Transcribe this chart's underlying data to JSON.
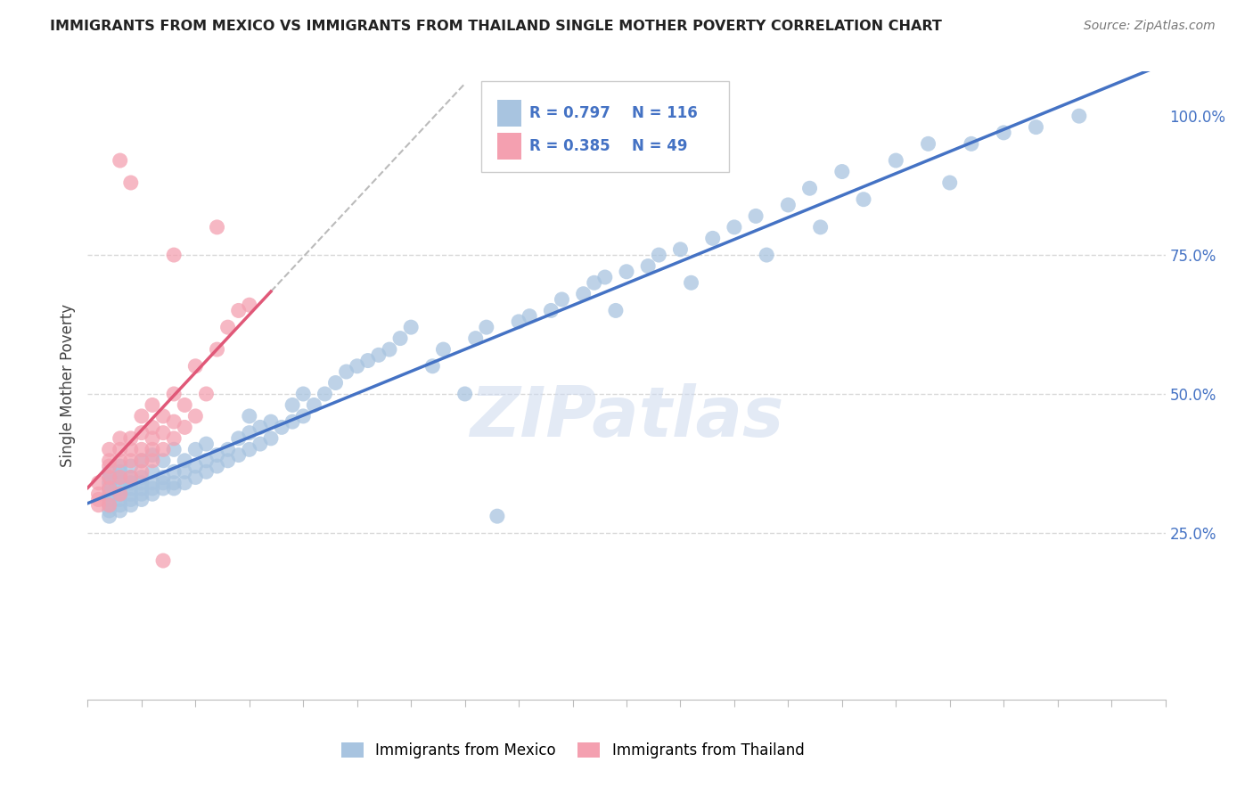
{
  "title": "IMMIGRANTS FROM MEXICO VS IMMIGRANTS FROM THAILAND SINGLE MOTHER POVERTY CORRELATION CHART",
  "source": "Source: ZipAtlas.com",
  "ylabel": "Single Mother Poverty",
  "watermark": "ZIPatlas",
  "mexico_R": 0.797,
  "mexico_N": 116,
  "thailand_R": 0.385,
  "thailand_N": 49,
  "mexico_color": "#a8c4e0",
  "thailand_color": "#f4a0b0",
  "mexico_line_color": "#4472c4",
  "thailand_line_color": "#e05878",
  "title_color": "#222222",
  "background_color": "#ffffff",
  "grid_color": "#d8d8d8",
  "ytick_color": "#4472c4",
  "xtick_color": "#4472c4",
  "xlim": [
    0,
    1
  ],
  "ylim": [
    -0.05,
    1.08
  ],
  "mexico_x": [
    0.02,
    0.02,
    0.02,
    0.02,
    0.02,
    0.02,
    0.02,
    0.02,
    0.02,
    0.03,
    0.03,
    0.03,
    0.03,
    0.03,
    0.03,
    0.03,
    0.03,
    0.03,
    0.04,
    0.04,
    0.04,
    0.04,
    0.04,
    0.04,
    0.04,
    0.05,
    0.05,
    0.05,
    0.05,
    0.05,
    0.05,
    0.06,
    0.06,
    0.06,
    0.06,
    0.06,
    0.07,
    0.07,
    0.07,
    0.07,
    0.08,
    0.08,
    0.08,
    0.08,
    0.09,
    0.09,
    0.09,
    0.1,
    0.1,
    0.1,
    0.11,
    0.11,
    0.11,
    0.12,
    0.12,
    0.13,
    0.13,
    0.14,
    0.14,
    0.15,
    0.15,
    0.15,
    0.16,
    0.16,
    0.17,
    0.17,
    0.18,
    0.19,
    0.19,
    0.2,
    0.2,
    0.21,
    0.22,
    0.23,
    0.24,
    0.25,
    0.26,
    0.27,
    0.28,
    0.29,
    0.3,
    0.32,
    0.33,
    0.35,
    0.36,
    0.37,
    0.38,
    0.4,
    0.41,
    0.43,
    0.44,
    0.46,
    0.47,
    0.48,
    0.49,
    0.5,
    0.52,
    0.53,
    0.55,
    0.56,
    0.58,
    0.6,
    0.62,
    0.63,
    0.65,
    0.67,
    0.68,
    0.7,
    0.72,
    0.75,
    0.78,
    0.8,
    0.82,
    0.85,
    0.88,
    0.92
  ],
  "mexico_y": [
    0.28,
    0.29,
    0.3,
    0.31,
    0.32,
    0.33,
    0.34,
    0.35,
    0.36,
    0.29,
    0.3,
    0.31,
    0.32,
    0.33,
    0.34,
    0.35,
    0.36,
    0.37,
    0.3,
    0.31,
    0.32,
    0.33,
    0.34,
    0.35,
    0.37,
    0.31,
    0.32,
    0.33,
    0.34,
    0.35,
    0.38,
    0.32,
    0.33,
    0.34,
    0.36,
    0.39,
    0.33,
    0.34,
    0.35,
    0.38,
    0.33,
    0.34,
    0.36,
    0.4,
    0.34,
    0.36,
    0.38,
    0.35,
    0.37,
    0.4,
    0.36,
    0.38,
    0.41,
    0.37,
    0.39,
    0.38,
    0.4,
    0.39,
    0.42,
    0.4,
    0.43,
    0.46,
    0.41,
    0.44,
    0.42,
    0.45,
    0.44,
    0.45,
    0.48,
    0.46,
    0.5,
    0.48,
    0.5,
    0.52,
    0.54,
    0.55,
    0.56,
    0.57,
    0.58,
    0.6,
    0.62,
    0.55,
    0.58,
    0.5,
    0.6,
    0.62,
    0.28,
    0.63,
    0.64,
    0.65,
    0.67,
    0.68,
    0.7,
    0.71,
    0.65,
    0.72,
    0.73,
    0.75,
    0.76,
    0.7,
    0.78,
    0.8,
    0.82,
    0.75,
    0.84,
    0.87,
    0.8,
    0.9,
    0.85,
    0.92,
    0.95,
    0.88,
    0.95,
    0.97,
    0.98,
    1.0
  ],
  "thailand_x": [
    0.01,
    0.01,
    0.01,
    0.01,
    0.02,
    0.02,
    0.02,
    0.02,
    0.02,
    0.02,
    0.03,
    0.03,
    0.03,
    0.03,
    0.03,
    0.04,
    0.04,
    0.04,
    0.04,
    0.05,
    0.05,
    0.05,
    0.05,
    0.05,
    0.06,
    0.06,
    0.06,
    0.06,
    0.06,
    0.07,
    0.07,
    0.07,
    0.08,
    0.08,
    0.08,
    0.09,
    0.09,
    0.1,
    0.1,
    0.11,
    0.12,
    0.13,
    0.14,
    0.15,
    0.12,
    0.08,
    0.03,
    0.04,
    0.07
  ],
  "thailand_y": [
    0.3,
    0.31,
    0.32,
    0.34,
    0.3,
    0.33,
    0.35,
    0.37,
    0.38,
    0.4,
    0.32,
    0.35,
    0.38,
    0.4,
    0.42,
    0.35,
    0.38,
    0.4,
    0.42,
    0.36,
    0.38,
    0.4,
    0.43,
    0.46,
    0.38,
    0.4,
    0.42,
    0.44,
    0.48,
    0.4,
    0.43,
    0.46,
    0.42,
    0.45,
    0.5,
    0.44,
    0.48,
    0.46,
    0.55,
    0.5,
    0.58,
    0.62,
    0.65,
    0.66,
    0.8,
    0.75,
    0.92,
    0.88,
    0.2
  ]
}
